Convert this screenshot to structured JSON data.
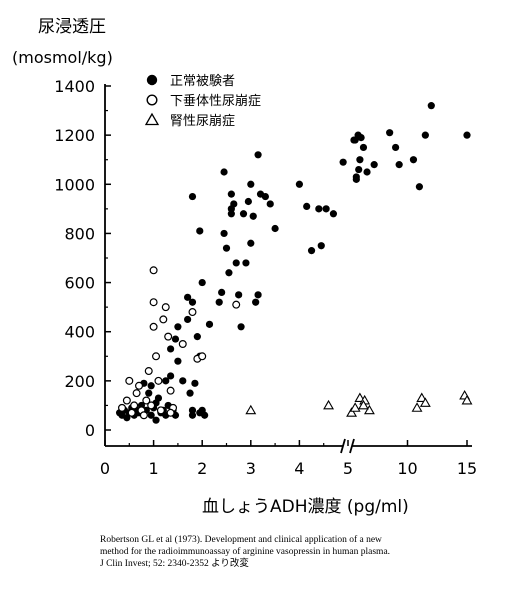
{
  "chart_data": {
    "type": "scatter",
    "title": "",
    "ylabel_line1": "尿浸透圧",
    "ylabel_line2": "(mosmol/kg)",
    "xlabel": "血しょうADH濃度 (pg/ml)",
    "ylim": [
      0,
      1400
    ],
    "yticks": [
      0,
      200,
      400,
      600,
      800,
      1000,
      1200,
      1400
    ],
    "xticks_left": [
      "0",
      "1",
      "2",
      "3",
      "4",
      "5"
    ],
    "xticks_right": [
      "10",
      "15"
    ],
    "x_axis_note": "broken x-axis: linear 0–5, compressed 5–15",
    "legend_position": "top-left",
    "grid": false,
    "series": [
      {
        "name": "正常被験者",
        "marker": "filled-circle",
        "points": [
          [
            0.3,
            70
          ],
          [
            0.35,
            60
          ],
          [
            0.4,
            80
          ],
          [
            0.45,
            50
          ],
          [
            0.5,
            70
          ],
          [
            0.55,
            90
          ],
          [
            0.6,
            60
          ],
          [
            0.65,
            80
          ],
          [
            0.7,
            70
          ],
          [
            0.75,
            100
          ],
          [
            0.8,
            60
          ],
          [
            0.85,
            80
          ],
          [
            0.9,
            150
          ],
          [
            0.95,
            60
          ],
          [
            1.0,
            90
          ],
          [
            1.05,
            40
          ],
          [
            1.1,
            130
          ],
          [
            1.15,
            70
          ],
          [
            1.2,
            80
          ],
          [
            1.25,
            60
          ],
          [
            1.3,
            100
          ],
          [
            1.35,
            220
          ],
          [
            1.4,
            80
          ],
          [
            1.45,
            60
          ],
          [
            0.95,
            180
          ],
          [
            1.25,
            200
          ],
          [
            0.8,
            190
          ],
          [
            1.05,
            110
          ],
          [
            1.35,
            330
          ],
          [
            1.5,
            280
          ],
          [
            1.8,
            60
          ],
          [
            1.8,
            80
          ],
          [
            1.75,
            150
          ],
          [
            1.95,
            70
          ],
          [
            2.05,
            60
          ],
          [
            2.0,
            80
          ],
          [
            1.7,
            540
          ],
          [
            1.8,
            520
          ],
          [
            1.85,
            190
          ],
          [
            1.9,
            380
          ],
          [
            1.95,
            300
          ],
          [
            1.7,
            450
          ],
          [
            1.5,
            420
          ],
          [
            1.45,
            370
          ],
          [
            1.6,
            200
          ],
          [
            1.95,
            810
          ],
          [
            2.0,
            600
          ],
          [
            2.15,
            430
          ],
          [
            2.35,
            520
          ],
          [
            2.4,
            560
          ],
          [
            2.45,
            800
          ],
          [
            2.5,
            740
          ],
          [
            2.55,
            640
          ],
          [
            2.6,
            880
          ],
          [
            2.65,
            920
          ],
          [
            2.7,
            680
          ],
          [
            2.8,
            420
          ],
          [
            2.75,
            550
          ],
          [
            2.85,
            880
          ],
          [
            2.9,
            680
          ],
          [
            2.95,
            930
          ],
          [
            3.0,
            1000
          ],
          [
            3.05,
            870
          ],
          [
            3.15,
            550
          ],
          [
            3.1,
            520
          ],
          [
            3.2,
            960
          ],
          [
            3.3,
            950
          ],
          [
            3.15,
            1120
          ],
          [
            3.4,
            920
          ],
          [
            3.5,
            820
          ],
          [
            1.8,
            950
          ],
          [
            2.45,
            1050
          ],
          [
            2.6,
            900
          ],
          [
            2.6,
            960
          ],
          [
            3.0,
            760
          ],
          [
            4.0,
            1000
          ],
          [
            4.15,
            910
          ],
          [
            4.25,
            730
          ],
          [
            4.4,
            900
          ],
          [
            4.45,
            750
          ],
          [
            4.55,
            900
          ],
          [
            4.7,
            880
          ],
          [
            4.9,
            1090
          ],
          [
            5.5,
            1180
          ],
          [
            5.6,
            1180
          ],
          [
            5.7,
            1030
          ],
          [
            5.85,
            1200
          ],
          [
            6.0,
            1100
          ],
          [
            6.1,
            1190
          ],
          [
            6.3,
            1150
          ],
          [
            6.6,
            1050
          ],
          [
            7.2,
            1080
          ],
          [
            8.5,
            1210
          ],
          [
            9.0,
            1150
          ],
          [
            9.3,
            1080
          ],
          [
            10.5,
            1100
          ],
          [
            11.0,
            990
          ],
          [
            11.5,
            1200
          ],
          [
            12.0,
            1320
          ],
          [
            15.0,
            1200
          ],
          [
            5.9,
            1060
          ],
          [
            5.7,
            1020
          ]
        ]
      },
      {
        "name": "下垂体性尿崩症",
        "marker": "open-circle",
        "points": [
          [
            0.5,
            200
          ],
          [
            0.6,
            100
          ],
          [
            0.65,
            150
          ],
          [
            0.7,
            180
          ],
          [
            0.75,
            80
          ],
          [
            0.8,
            60
          ],
          [
            0.85,
            120
          ],
          [
            0.9,
            240
          ],
          [
            0.95,
            100
          ],
          [
            1.0,
            650
          ],
          [
            1.0,
            520
          ],
          [
            1.0,
            420
          ],
          [
            1.05,
            300
          ],
          [
            1.1,
            200
          ],
          [
            1.15,
            80
          ],
          [
            1.2,
            450
          ],
          [
            1.25,
            500
          ],
          [
            1.3,
            380
          ],
          [
            1.35,
            160
          ],
          [
            1.4,
            90
          ],
          [
            1.6,
            350
          ],
          [
            1.8,
            480
          ],
          [
            1.9,
            290
          ],
          [
            2.0,
            300
          ],
          [
            2.7,
            510
          ],
          [
            0.35,
            90
          ],
          [
            0.45,
            120
          ],
          [
            0.55,
            70
          ],
          [
            1.35,
            70
          ]
        ]
      },
      {
        "name": "腎性尿崩症",
        "marker": "open-triangle",
        "points": [
          [
            3.0,
            80
          ],
          [
            4.6,
            100
          ],
          [
            5.3,
            70
          ],
          [
            5.6,
            90
          ],
          [
            6.0,
            130
          ],
          [
            6.4,
            120
          ],
          [
            6.8,
            80
          ],
          [
            10.8,
            90
          ],
          [
            11.2,
            130
          ],
          [
            11.5,
            110
          ],
          [
            14.8,
            140
          ],
          [
            15.0,
            120
          ],
          [
            6.3,
            100
          ]
        ]
      }
    ]
  },
  "citation": {
    "line1": "Robertson GL et al (1973).  Development and clinical application of a new",
    "line2": "method for the radioimmunoassay of arginine vasopressin in human plasma.",
    "line3": "J Clin Invest; 52: 2340-2352 より改変"
  }
}
